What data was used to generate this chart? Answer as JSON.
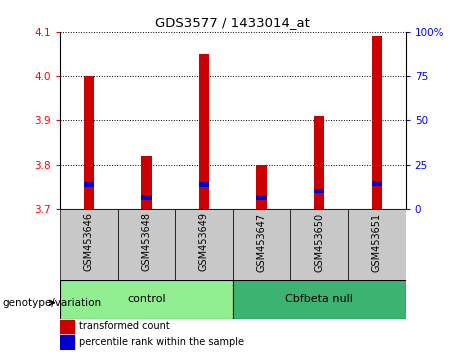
{
  "title": "GDS3577 / 1433014_at",
  "samples": [
    "GSM453646",
    "GSM453648",
    "GSM453649",
    "GSM453647",
    "GSM453650",
    "GSM453651"
  ],
  "groups": [
    {
      "name": "control",
      "color": "#90EE90",
      "indices": [
        0,
        1,
        2
      ]
    },
    {
      "name": "Cbfbeta null",
      "color": "#3CB371",
      "indices": [
        3,
        4,
        5
      ]
    }
  ],
  "bar_bottom": 3.7,
  "bar_values": [
    4.0,
    3.82,
    4.05,
    3.8,
    3.91,
    4.09
  ],
  "percentile_values": [
    3.755,
    3.726,
    3.755,
    3.726,
    3.74,
    3.757
  ],
  "ylim_left": [
    3.7,
    4.1
  ],
  "ylim_right": [
    0,
    100
  ],
  "yticks_left": [
    3.7,
    3.8,
    3.9,
    4.0,
    4.1
  ],
  "yticks_right": [
    0,
    25,
    50,
    75,
    100
  ],
  "bar_color": "#CC0000",
  "blue_color": "#0000CC",
  "bar_width": 0.18,
  "grid_color": "black",
  "gray_color": "#C8C8C8",
  "group_label": "genotype/variation",
  "legend_items": [
    "transformed count",
    "percentile rank within the sample"
  ]
}
